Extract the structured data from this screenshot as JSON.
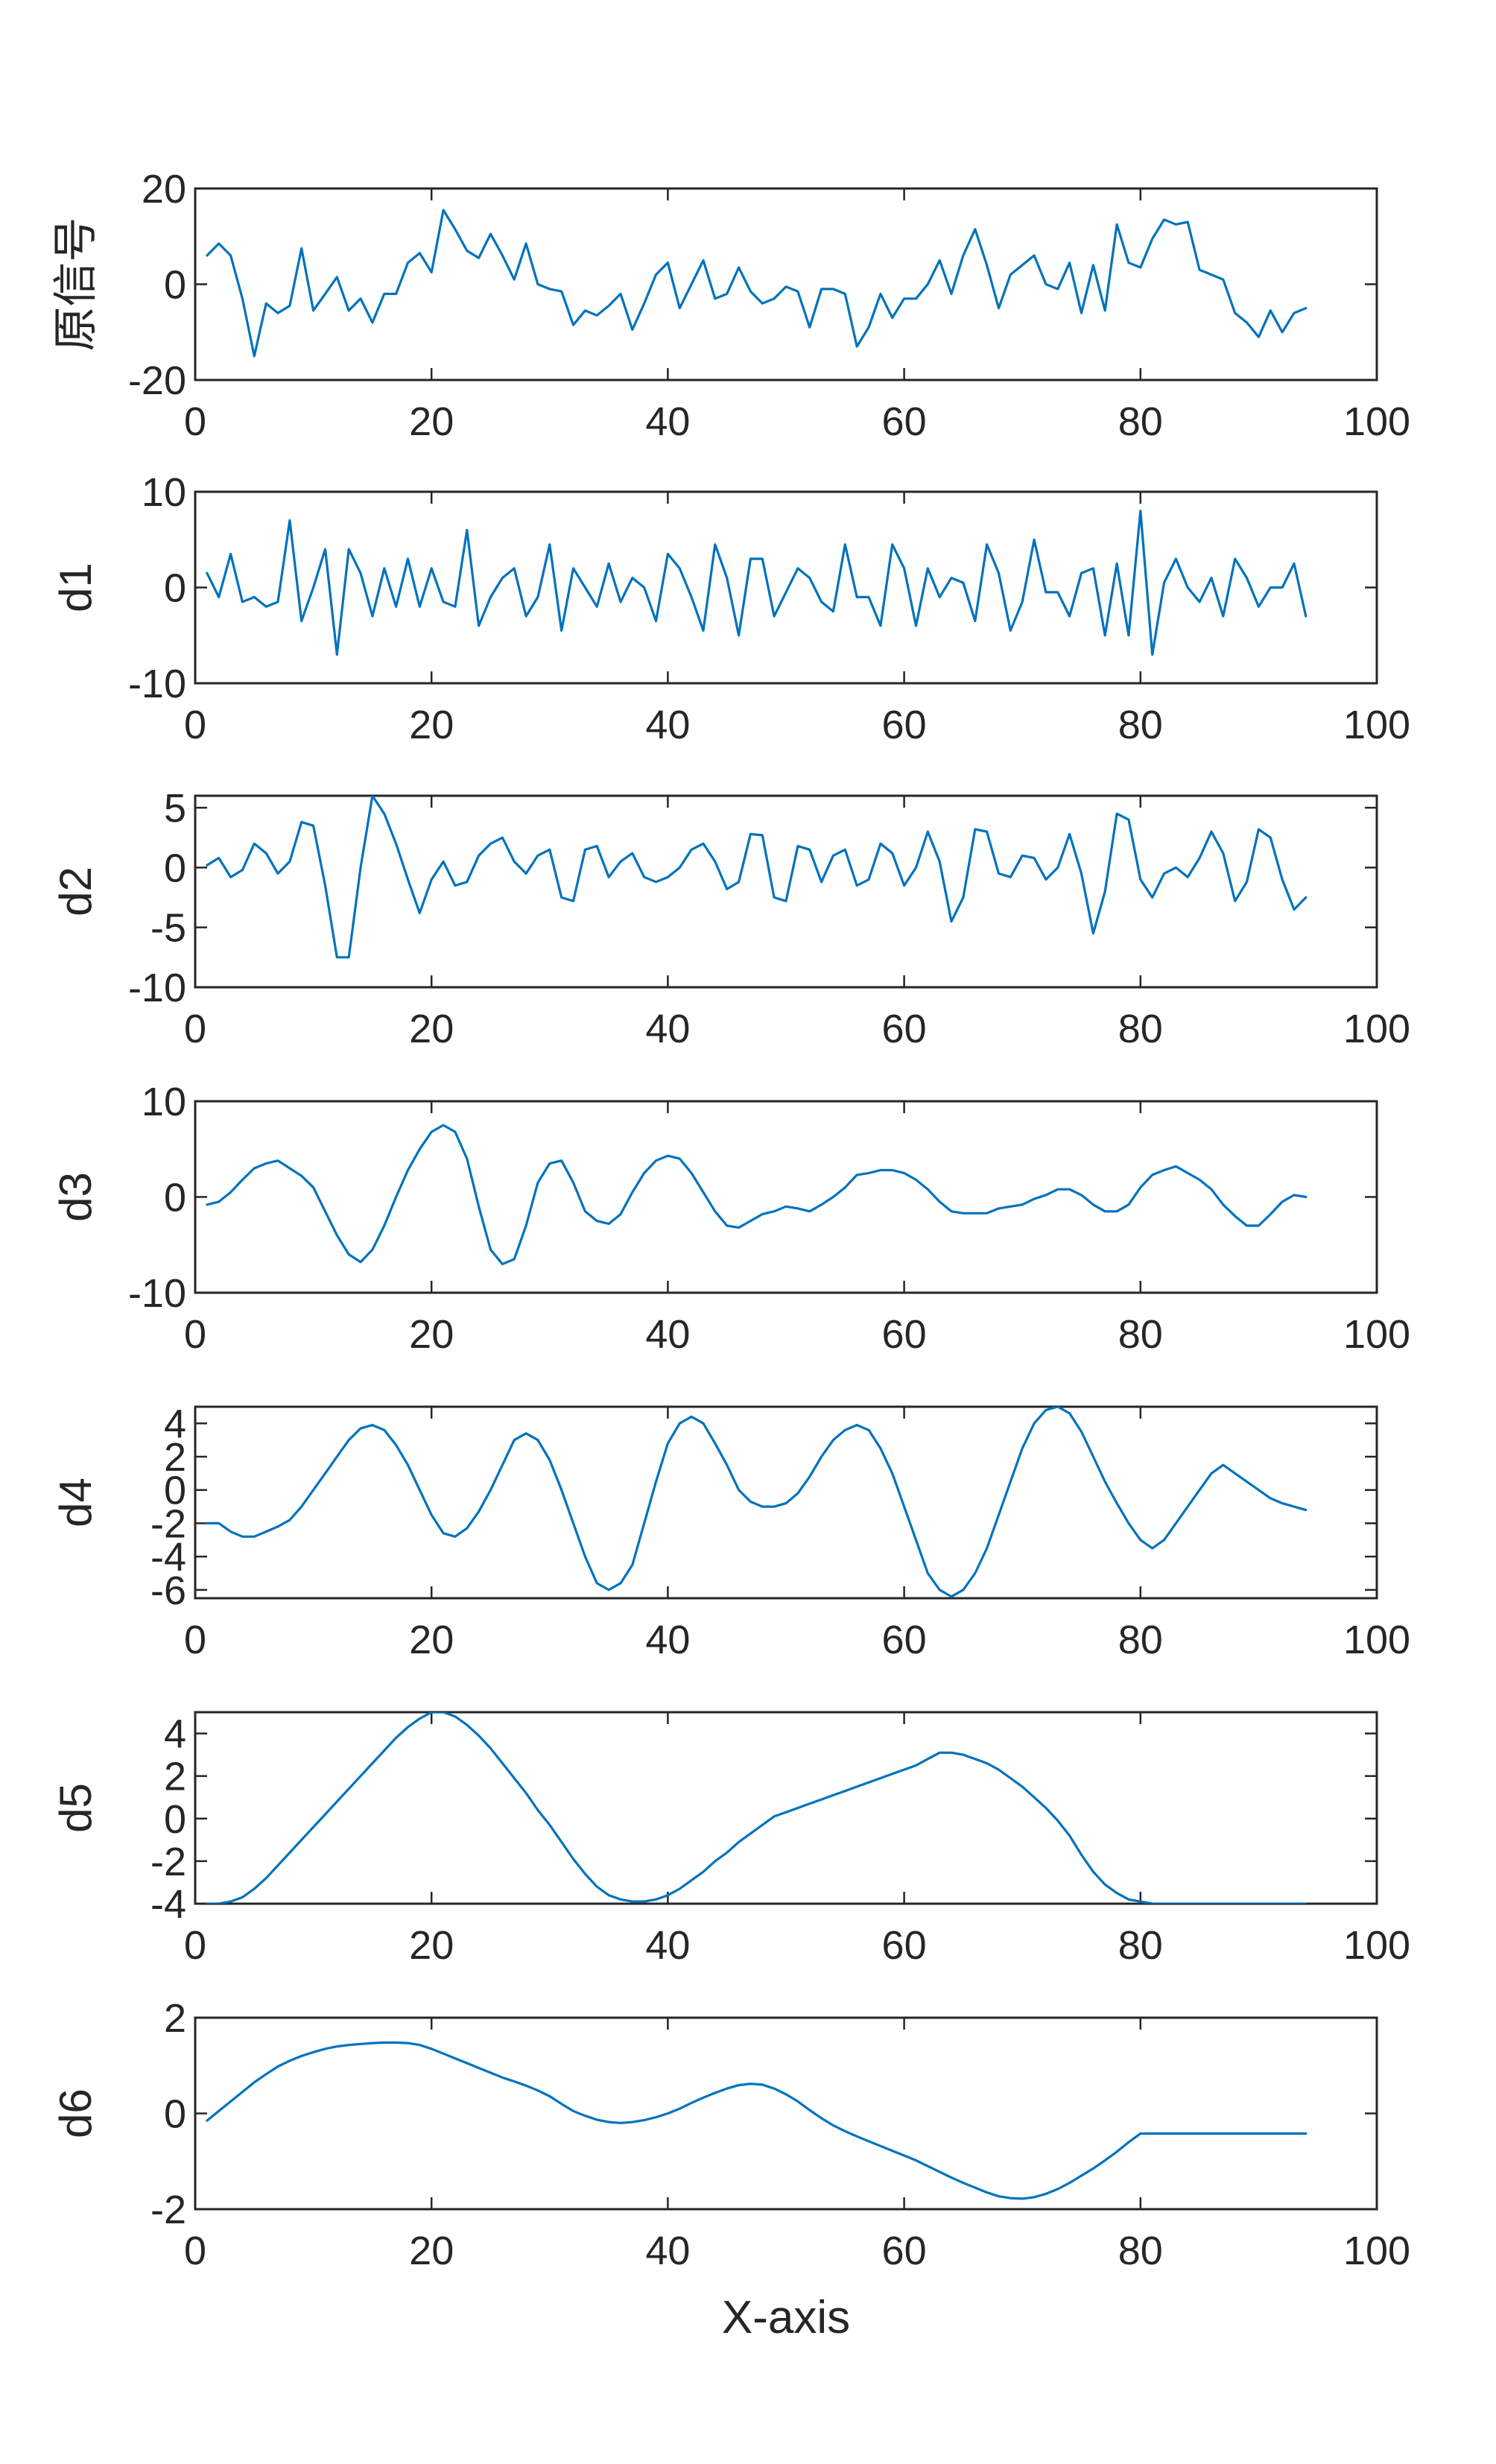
{
  "colors": {
    "series": "#0072BD",
    "axes": "#262626",
    "background": "#ffffff"
  },
  "chart_data": [
    {
      "type": "line",
      "ylabel": "原信号",
      "xlim": [
        0,
        100
      ],
      "ylim": [
        -20,
        20
      ],
      "xticks": [
        0,
        20,
        40,
        60,
        80,
        100
      ],
      "yticks": [
        -20,
        0,
        20
      ],
      "xlabel": "",
      "series": [
        {
          "values": [
            6,
            8.5,
            6,
            -3,
            -15,
            -4,
            -6,
            -4.5,
            7.5,
            -5.5,
            -2,
            1.5,
            -5.5,
            -3,
            -8,
            -2,
            -2,
            4.5,
            6.5,
            2.5,
            15.5,
            11.5,
            7,
            5.5,
            10.5,
            6,
            1,
            8.5,
            0,
            -1,
            -1.5,
            -8.5,
            -5.5,
            -6.5,
            -4.5,
            -2,
            -9.5,
            -4,
            2,
            4.5,
            -5,
            0,
            5,
            -3,
            -2,
            3.5,
            -1.5,
            -4,
            -3,
            -0.5,
            -1.5,
            -9,
            -1,
            -1,
            -2,
            -13,
            -9,
            -2,
            -7,
            -3,
            -3,
            0,
            5,
            -2,
            6,
            11.5,
            4,
            -5,
            2,
            4,
            6,
            0,
            -1,
            4.5,
            -6,
            4,
            -5.5,
            12.5,
            4.5,
            3.5,
            9.5,
            13.5,
            12.5,
            13,
            3,
            2,
            1,
            -6,
            -8,
            -11,
            -5.5,
            -10,
            -6,
            -5
          ]
        }
      ]
    },
    {
      "type": "line",
      "ylabel": "d1",
      "xlim": [
        0,
        100
      ],
      "ylim": [
        -10,
        10
      ],
      "xticks": [
        0,
        20,
        40,
        60,
        80,
        100
      ],
      "yticks": [
        -10,
        0,
        10
      ],
      "xlabel": "",
      "series": [
        {
          "values": [
            1.5,
            -1,
            3.5,
            -1.5,
            -1,
            -2,
            -1.5,
            7,
            -3.5,
            0,
            4,
            -7,
            4,
            1.5,
            -3,
            2,
            -2,
            3,
            -2,
            2,
            -1.5,
            -2,
            6,
            -4,
            -1,
            1,
            2,
            -3,
            -1,
            4.5,
            -4.5,
            2,
            0,
            -2,
            2.5,
            -1.5,
            1,
            0,
            -3.5,
            3.5,
            2,
            -1,
            -4.5,
            4.5,
            1,
            -5,
            3,
            3,
            -3,
            -0.5,
            2,
            1,
            -1.5,
            -2.5,
            4.5,
            -1,
            -1,
            -4,
            4.5,
            2,
            -4,
            2,
            -1,
            1,
            0.5,
            -3.5,
            4.5,
            1.5,
            -4.5,
            -1.5,
            5,
            -0.5,
            -0.5,
            -3,
            1.5,
            2,
            -5,
            2.5,
            -5,
            8,
            -7,
            0.5,
            3,
            0,
            -1.5,
            1,
            -3,
            3,
            1,
            -2,
            0,
            0,
            2.5,
            -3
          ]
        }
      ]
    },
    {
      "type": "line",
      "ylabel": "d2",
      "xlim": [
        0,
        100
      ],
      "ylim": [
        -10,
        6
      ],
      "xticks": [
        0,
        20,
        40,
        60,
        80,
        100
      ],
      "yticks": [
        -10,
        -5,
        0,
        5
      ],
      "xlabel": "",
      "series": [
        {
          "values": [
            0.2,
            0.8,
            -0.8,
            -0.2,
            2,
            1.2,
            -0.5,
            0.5,
            3.8,
            3.5,
            -1.5,
            -7.5,
            -7.5,
            0,
            6,
            4.5,
            2,
            -1,
            -3.8,
            -1,
            0.5,
            -1.5,
            -1.2,
            1,
            2,
            2.5,
            0.5,
            -0.5,
            1,
            1.5,
            -2.5,
            -2.8,
            1.5,
            1.8,
            -0.8,
            0.5,
            1.2,
            -0.8,
            -1.2,
            -0.8,
            0,
            1.5,
            2,
            0.5,
            -1.8,
            -1.2,
            2.8,
            2.7,
            -2.5,
            -2.8,
            1.8,
            1.5,
            -1.2,
            1,
            1.5,
            -1.5,
            -1,
            2,
            1.2,
            -1.5,
            0,
            3,
            0.5,
            -4.5,
            -2.5,
            3.2,
            3,
            -0.5,
            -0.8,
            1,
            0.8,
            -1,
            0,
            2.8,
            -0.5,
            -5.5,
            -2,
            4.5,
            4,
            -1,
            -2.5,
            -0.5,
            0,
            -0.8,
            0.8,
            3,
            1.2,
            -2.8,
            -1.2,
            3.2,
            2.5,
            -1,
            -3.5,
            -2.5
          ]
        }
      ]
    },
    {
      "type": "line",
      "ylabel": "d3",
      "xlim": [
        0,
        100
      ],
      "ylim": [
        -10,
        10
      ],
      "xticks": [
        0,
        20,
        40,
        60,
        80,
        100
      ],
      "yticks": [
        -10,
        0,
        10
      ],
      "xlabel": "",
      "series": [
        {
          "values": [
            -0.8,
            -0.5,
            0.5,
            1.8,
            3,
            3.5,
            3.8,
            3,
            2.2,
            1,
            -1.5,
            -4,
            -6,
            -6.8,
            -5.5,
            -3,
            0,
            2.8,
            5,
            6.8,
            7.5,
            6.8,
            4,
            -1,
            -5.5,
            -7,
            -6.5,
            -3,
            1.5,
            3.5,
            3.8,
            1.5,
            -1.5,
            -2.5,
            -2.8,
            -1.8,
            0.5,
            2.5,
            3.8,
            4.3,
            4,
            2.5,
            0.5,
            -1.5,
            -3,
            -3.2,
            -2.5,
            -1.8,
            -1.5,
            -1,
            -1.2,
            -1.5,
            -0.8,
            0,
            1,
            2.3,
            2.5,
            2.8,
            2.8,
            2.5,
            1.8,
            0.8,
            -0.5,
            -1.5,
            -1.7,
            -1.7,
            -1.7,
            -1.2,
            -1,
            -0.8,
            -0.2,
            0.2,
            0.8,
            0.8,
            0.2,
            -0.8,
            -1.5,
            -1.5,
            -0.8,
            1,
            2.3,
            2.8,
            3.2,
            2.5,
            1.8,
            0.8,
            -0.8,
            -2,
            -3,
            -3,
            -1.8,
            -0.5,
            0.2,
            0
          ]
        }
      ]
    },
    {
      "type": "line",
      "ylabel": "d4",
      "xlim": [
        0,
        100
      ],
      "ylim": [
        -6.5,
        5
      ],
      "xticks": [
        0,
        20,
        40,
        60,
        80,
        100
      ],
      "yticks": [
        -6,
        -4,
        -2,
        0,
        2,
        4
      ],
      "xlabel": "",
      "series": [
        {
          "values": [
            -2,
            -2,
            -2.5,
            -2.8,
            -2.8,
            -2.5,
            -2.2,
            -1.8,
            -1,
            0,
            1,
            2,
            3,
            3.7,
            3.9,
            3.6,
            2.7,
            1.5,
            0,
            -1.5,
            -2.6,
            -2.8,
            -2.3,
            -1.3,
            0,
            1.5,
            3,
            3.4,
            3,
            1.8,
            0,
            -2,
            -4,
            -5.6,
            -6,
            -5.6,
            -4.5,
            -2,
            0.5,
            2.8,
            4,
            4.4,
            4,
            2.8,
            1.5,
            0,
            -0.7,
            -1,
            -1,
            -0.8,
            -0.2,
            0.8,
            2,
            3,
            3.6,
            3.9,
            3.6,
            2.5,
            1,
            -1,
            -3,
            -5,
            -6,
            -6.4,
            -6,
            -5,
            -3.5,
            -1.5,
            0.5,
            2.5,
            4,
            4.8,
            5,
            4.6,
            3.5,
            2,
            0.5,
            -0.8,
            -2,
            -3,
            -3.5,
            -3,
            -2,
            -1,
            0,
            1,
            1.5,
            1,
            0.5,
            0,
            -0.5,
            -0.8,
            -1,
            -1.2
          ]
        }
      ]
    },
    {
      "type": "line",
      "ylabel": "d5",
      "xlim": [
        0,
        100
      ],
      "ylim": [
        -4,
        5
      ],
      "xticks": [
        0,
        20,
        40,
        60,
        80,
        100
      ],
      "yticks": [
        -4,
        -2,
        0,
        2,
        4
      ],
      "xlabel": "",
      "series": [
        {
          "values": [
            -4,
            -4,
            -3.9,
            -3.7,
            -3.3,
            -2.8,
            -2.2,
            -1.6,
            -1,
            -0.4,
            0.2,
            0.8,
            1.4,
            2,
            2.6,
            3.2,
            3.8,
            4.3,
            4.7,
            5,
            5,
            4.8,
            4.4,
            3.9,
            3.3,
            2.6,
            1.9,
            1.2,
            0.4,
            -0.3,
            -1.1,
            -1.9,
            -2.6,
            -3.2,
            -3.6,
            -3.8,
            -3.9,
            -3.9,
            -3.8,
            -3.6,
            -3.3,
            -2.9,
            -2.5,
            -2,
            -1.6,
            -1.1,
            -0.7,
            -0.3,
            0.1,
            0.3,
            0.5,
            0.7,
            0.9,
            1.1,
            1.3,
            1.5,
            1.7,
            1.9,
            2.1,
            2.3,
            2.5,
            2.8,
            3.1,
            3.1,
            3,
            2.8,
            2.6,
            2.3,
            1.9,
            1.5,
            1,
            0.5,
            -0.1,
            -0.8,
            -1.7,
            -2.5,
            -3.1,
            -3.5,
            -3.8,
            -3.9,
            -4,
            -4,
            -4,
            -4,
            -4,
            -4,
            -4,
            -4,
            -4,
            -4,
            -4,
            -4,
            -4,
            -4
          ]
        }
      ]
    },
    {
      "type": "line",
      "ylabel": "d6",
      "xlim": [
        0,
        100
      ],
      "ylim": [
        -2,
        2
      ],
      "xticks": [
        0,
        20,
        40,
        60,
        80,
        100
      ],
      "yticks": [
        -2,
        0,
        2
      ],
      "xlabel": "X-axis",
      "series": [
        {
          "values": [
            -0.15,
            0.05,
            0.25,
            0.45,
            0.65,
            0.82,
            0.98,
            1.1,
            1.2,
            1.28,
            1.35,
            1.4,
            1.43,
            1.45,
            1.47,
            1.48,
            1.48,
            1.47,
            1.43,
            1.35,
            1.25,
            1.15,
            1.05,
            0.95,
            0.85,
            0.75,
            0.67,
            0.58,
            0.48,
            0.36,
            0.2,
            0.05,
            -0.05,
            -0.13,
            -0.18,
            -0.2,
            -0.18,
            -0.14,
            -0.08,
            0,
            0.1,
            0.22,
            0.33,
            0.43,
            0.52,
            0.59,
            0.62,
            0.6,
            0.52,
            0.4,
            0.25,
            0.07,
            -0.1,
            -0.25,
            -0.37,
            -0.48,
            -0.58,
            -0.68,
            -0.78,
            -0.88,
            -0.98,
            -1.1,
            -1.22,
            -1.34,
            -1.45,
            -1.55,
            -1.65,
            -1.73,
            -1.77,
            -1.78,
            -1.75,
            -1.68,
            -1.58,
            -1.45,
            -1.3,
            -1.15,
            -0.98,
            -0.8,
            -0.6,
            -0.42,
            -0.42,
            -0.42,
            -0.42,
            -0.42,
            -0.42,
            -0.42,
            -0.42,
            -0.42,
            -0.42,
            -0.42,
            -0.42,
            -0.42,
            -0.42,
            -0.42
          ]
        }
      ]
    }
  ]
}
